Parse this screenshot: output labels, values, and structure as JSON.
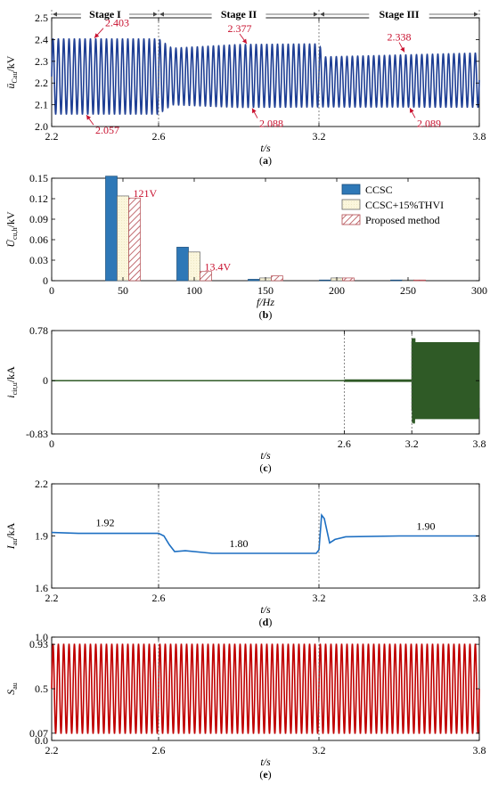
{
  "figure": {
    "panel_labels": [
      "(a)",
      "(b)",
      "(c)",
      "(d)",
      "(e)"
    ],
    "stage_labels": [
      "Stage I",
      "Stage II",
      "Stage III"
    ]
  },
  "colors": {
    "navy": "#1f3f94",
    "blue_bar": "#2e78b7",
    "cream_bar": "#fbf6dc",
    "hatch": "#b2494f",
    "green": "#2f5a26",
    "line_blue": "#1d6fc2",
    "red": "#c00000",
    "annotation": "#c8102e"
  },
  "chart_data": [
    {
      "id": "a",
      "type": "line",
      "xlabel": "t/s",
      "ylabel": "ū_Cau/kV",
      "ylabel_main": "ū",
      "ylabel_sub": "Cau",
      "ylabel_unit": "/kV",
      "xlim": [
        2.2,
        3.8
      ],
      "ylim": [
        2.0,
        2.5
      ],
      "xticks": [
        2.2,
        2.6,
        3.2,
        3.8
      ],
      "yticks": [
        2.0,
        2.1,
        2.2,
        2.3,
        2.4,
        2.5
      ],
      "stage_boundaries": [
        2.2,
        2.6,
        3.2,
        3.8
      ],
      "vlines": [
        2.6,
        3.2
      ],
      "oscillation_frequency_hz": 50,
      "envelope": [
        {
          "t": 2.2,
          "max": 2.403,
          "min": 2.057
        },
        {
          "t": 2.6,
          "max": 2.403,
          "min": 2.057
        },
        {
          "t": 2.65,
          "max": 2.36,
          "min": 2.1
        },
        {
          "t": 2.9,
          "max": 2.377,
          "min": 2.088
        },
        {
          "t": 3.2,
          "max": 2.38,
          "min": 2.09
        },
        {
          "t": 3.22,
          "max": 2.32,
          "min": 2.09
        },
        {
          "t": 3.8,
          "max": 2.338,
          "min": 2.089
        }
      ],
      "annotations": [
        {
          "text": "2.403",
          "x": 2.36,
          "y": 2.403
        },
        {
          "text": "2.057",
          "x": 2.33,
          "y": 2.057
        },
        {
          "text": "2.377",
          "x": 2.93,
          "y": 2.377
        },
        {
          "text": "2.088",
          "x": 2.95,
          "y": 2.088
        },
        {
          "text": "2.338",
          "x": 3.52,
          "y": 2.338
        },
        {
          "text": "2.089",
          "x": 3.54,
          "y": 2.089
        }
      ]
    },
    {
      "id": "b",
      "type": "bar",
      "xlabel": "f/Hz",
      "ylabel": "Ū_Cu,h/kV",
      "ylabel_main": "Ū",
      "ylabel_sub": "cu,h",
      "ylabel_unit": "/kV",
      "xlim": [
        0,
        300
      ],
      "ylim": [
        0,
        0.15
      ],
      "xticks": [
        0,
        50,
        100,
        150,
        200,
        250,
        300
      ],
      "yticks": [
        0,
        0.03,
        0.06,
        0.09,
        0.12,
        0.15
      ],
      "categories": [
        50,
        100,
        150,
        200,
        250
      ],
      "series": [
        {
          "name": "CCSC",
          "values": [
            0.153,
            0.049,
            0.002,
            0.001,
            0.001
          ]
        },
        {
          "name": "CCSC+15%THVI",
          "values": [
            0.124,
            0.042,
            0.004,
            0.004,
            0.001
          ]
        },
        {
          "name": "Proposed method",
          "values": [
            0.121,
            0.0134,
            0.007,
            0.004,
            0.001
          ]
        }
      ],
      "legend_position": "top-right",
      "annotations": [
        {
          "text": "121V",
          "x": 50,
          "y": 0.121
        },
        {
          "text": "13.4V",
          "x": 100,
          "y": 0.0134
        }
      ]
    },
    {
      "id": "c",
      "type": "line",
      "xlabel": "t/s",
      "ylabel": "i_cir,u/kA",
      "ylabel_main": "i",
      "ylabel_sub": "cir,u",
      "ylabel_unit": "/kA",
      "xlim": [
        0,
        3.8
      ],
      "ylim": [
        -0.83,
        0.78
      ],
      "xticks": [
        0,
        2.6,
        3.2,
        3.8
      ],
      "yticks": [
        -0.83,
        0,
        0.78
      ],
      "vlines": [
        2.6,
        3.2
      ],
      "segments": [
        {
          "t_start": 0,
          "t_end": 2.6,
          "amplitude": 0.01
        },
        {
          "t_start": 2.6,
          "t_end": 3.2,
          "amplitude": 0.02
        },
        {
          "t_start": 3.2,
          "t_end": 3.8,
          "amplitude": 0.6
        }
      ],
      "spike": {
        "t": 3.22,
        "max": 0.66,
        "min": -0.67
      }
    },
    {
      "id": "d",
      "type": "line",
      "xlabel": "t/s",
      "ylabel": "I_au/kA",
      "ylabel_main": "I",
      "ylabel_sub": "au",
      "ylabel_unit": "/kA",
      "xlim": [
        2.2,
        3.8
      ],
      "ylim": [
        1.6,
        2.2
      ],
      "xticks": [
        2.2,
        2.6,
        3.2,
        3.8
      ],
      "yticks": [
        1.6,
        1.9,
        2.2
      ],
      "vlines": [
        2.6,
        3.2
      ],
      "points": [
        {
          "t": 2.2,
          "v": 1.92
        },
        {
          "t": 2.3,
          "v": 1.915
        },
        {
          "t": 2.5,
          "v": 1.915
        },
        {
          "t": 2.6,
          "v": 1.915
        },
        {
          "t": 2.62,
          "v": 1.9
        },
        {
          "t": 2.64,
          "v": 1.85
        },
        {
          "t": 2.66,
          "v": 1.81
        },
        {
          "t": 2.7,
          "v": 1.815
        },
        {
          "t": 2.8,
          "v": 1.8
        },
        {
          "t": 3.0,
          "v": 1.8
        },
        {
          "t": 3.19,
          "v": 1.8
        },
        {
          "t": 3.2,
          "v": 1.82
        },
        {
          "t": 3.21,
          "v": 2.02
        },
        {
          "t": 3.22,
          "v": 2.0
        },
        {
          "t": 3.23,
          "v": 1.93
        },
        {
          "t": 3.24,
          "v": 1.86
        },
        {
          "t": 3.26,
          "v": 1.88
        },
        {
          "t": 3.3,
          "v": 1.895
        },
        {
          "t": 3.5,
          "v": 1.9
        },
        {
          "t": 3.8,
          "v": 1.9
        }
      ],
      "annotations": [
        {
          "text": "1.92",
          "x": 2.4,
          "y": 1.92
        },
        {
          "text": "1.80",
          "x": 2.9,
          "y": 1.8
        },
        {
          "text": "1.90",
          "x": 3.6,
          "y": 1.9
        }
      ]
    },
    {
      "id": "e",
      "type": "line",
      "xlabel": "t/s",
      "ylabel": "S_au",
      "ylabel_main": "S",
      "ylabel_sub": "au",
      "ylabel_unit": "",
      "xlim": [
        2.2,
        3.8
      ],
      "ylim": [
        0.0,
        1.0
      ],
      "xticks": [
        2.2,
        2.6,
        3.2,
        3.8
      ],
      "yticks": [
        0.0,
        0.07,
        0.5,
        0.93,
        1.0
      ],
      "vlines": [
        2.6,
        3.2
      ],
      "oscillation_frequency_hz": 50,
      "max": 0.93,
      "min": 0.07
    }
  ]
}
